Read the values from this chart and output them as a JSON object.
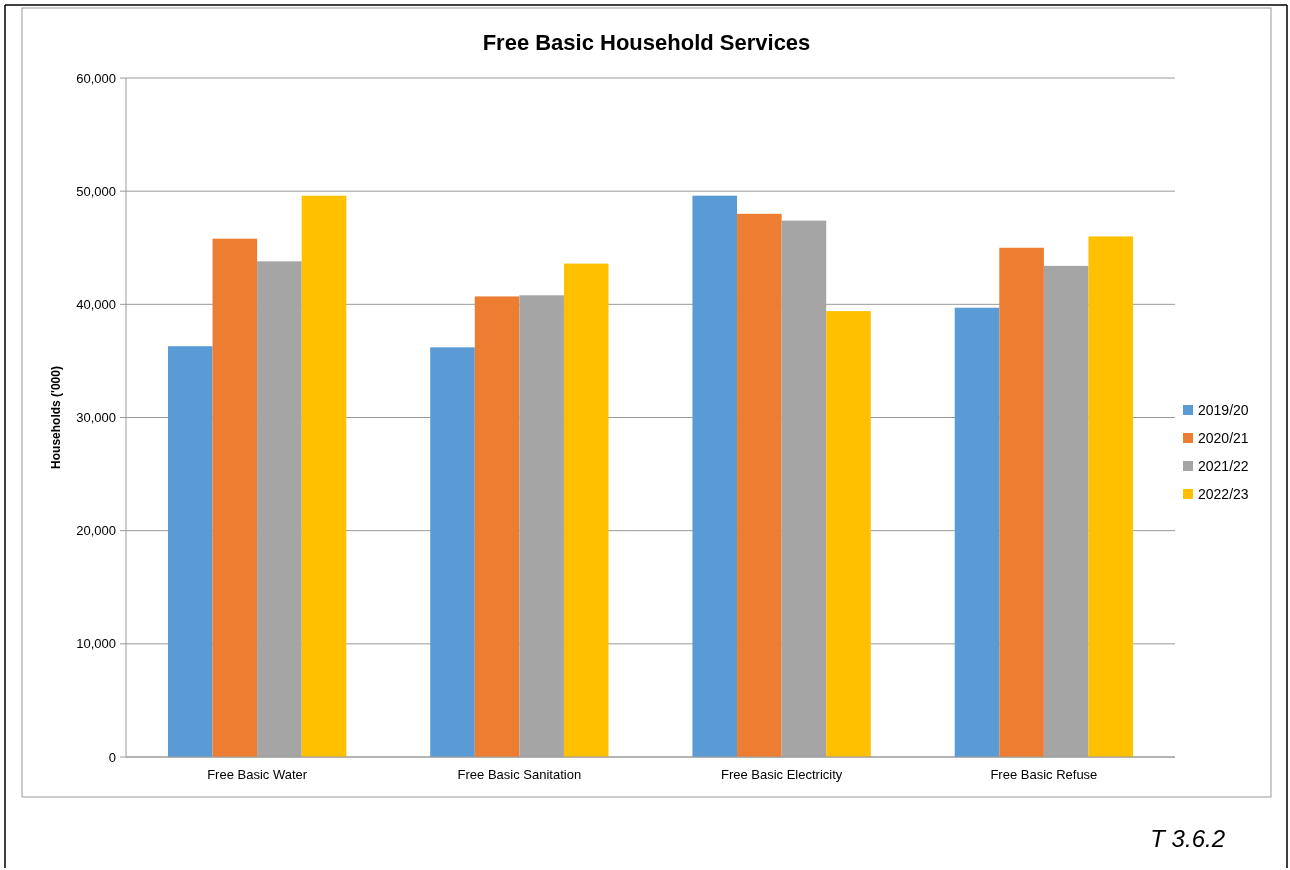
{
  "chart_data": {
    "type": "bar",
    "title": "Free Basic Household Services",
    "ylabel": "Households ('000)",
    "categories": [
      "Free Basic Water",
      "Free Basic Sanitation",
      "Free Basic Electricity",
      "Free Basic Refuse"
    ],
    "series": [
      {
        "name": "2019/20",
        "color": "#5b9bd5",
        "values": [
          36300,
          36200,
          49600,
          39700
        ]
      },
      {
        "name": "2020/21",
        "color": "#ed7d31",
        "values": [
          45800,
          40700,
          48000,
          45000
        ]
      },
      {
        "name": "2021/22",
        "color": "#a5a5a5",
        "values": [
          43800,
          40800,
          47400,
          43400
        ]
      },
      {
        "name": "2022/23",
        "color": "#ffc000",
        "values": [
          49600,
          43600,
          39400,
          46000
        ]
      }
    ],
    "ylim": [
      0,
      60000
    ],
    "yticks": [
      {
        "value": 0,
        "label": "0"
      },
      {
        "value": 10000,
        "label": "10,000"
      },
      {
        "value": 20000,
        "label": "20,000"
      },
      {
        "value": 30000,
        "label": "30,000"
      },
      {
        "value": 40000,
        "label": "40,000"
      },
      {
        "value": 50000,
        "label": "50,000"
      },
      {
        "value": 60000,
        "label": "60,000"
      }
    ],
    "grid": "y",
    "legend": "right",
    "annotations": [
      "T 3.6.2"
    ]
  }
}
